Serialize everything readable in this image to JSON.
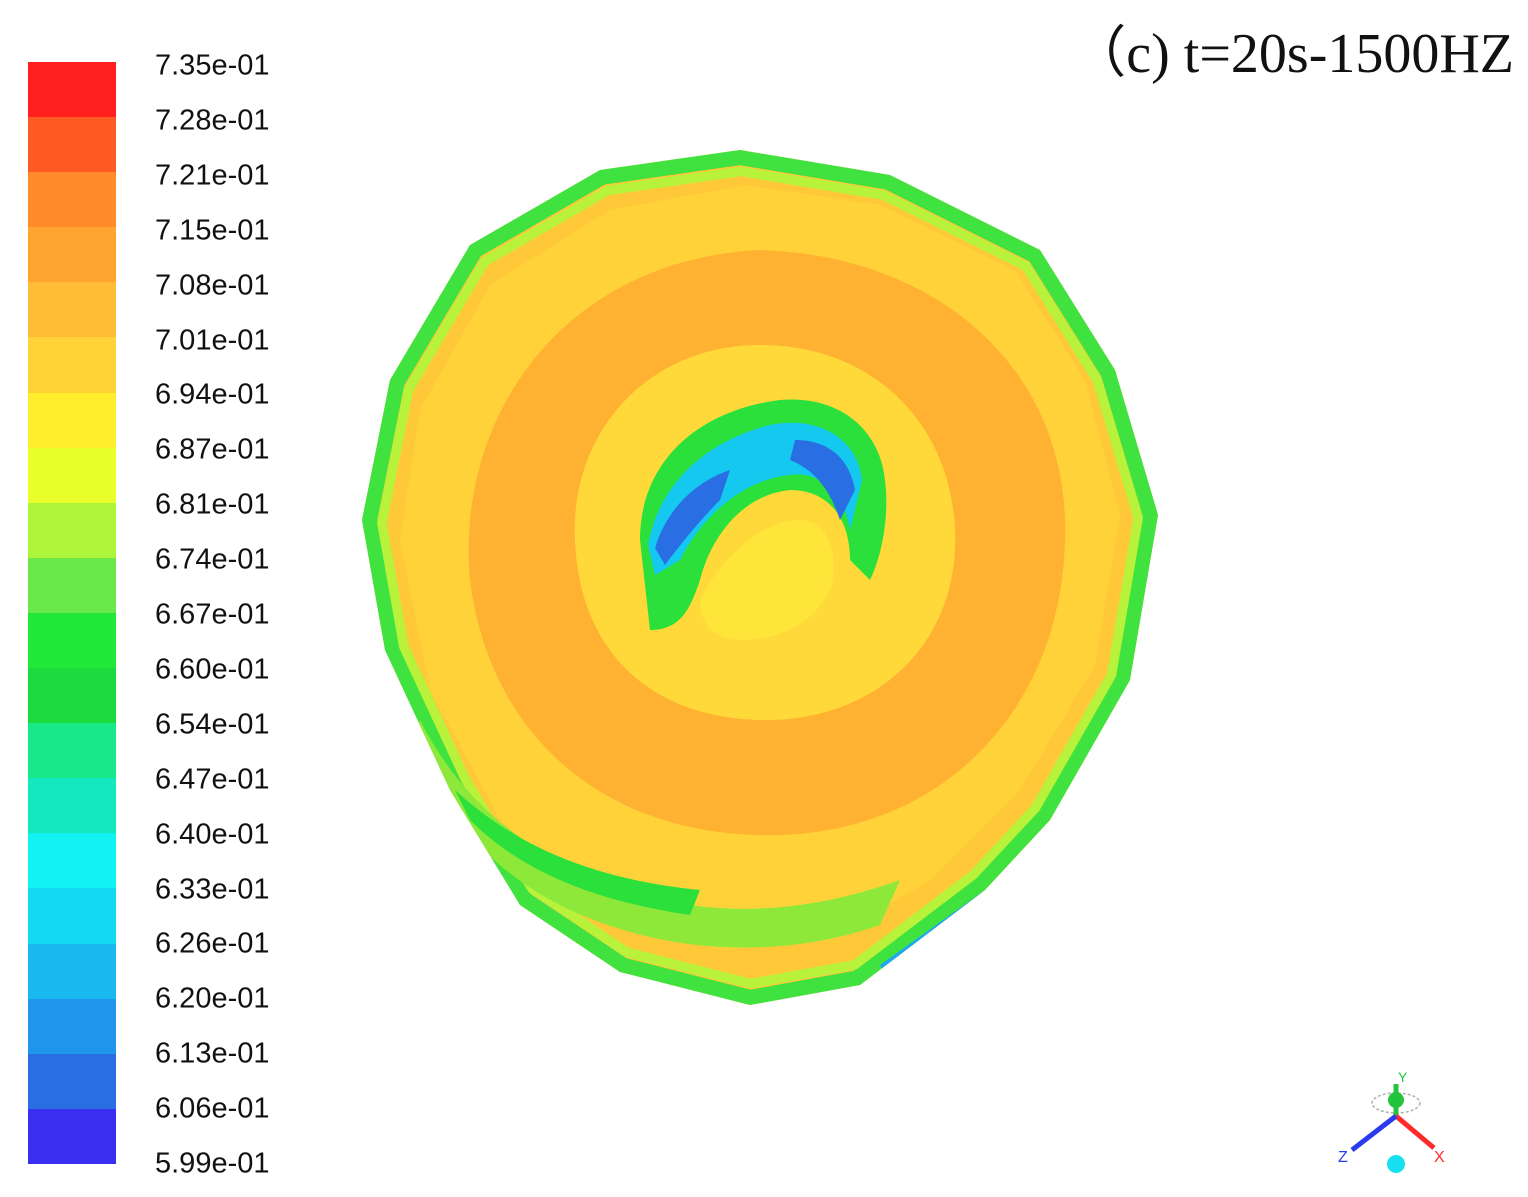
{
  "title": "（c) t=20s-1500HZ",
  "colorbar": {
    "labels": [
      "7.35e-01",
      "7.28e-01",
      "7.21e-01",
      "7.15e-01",
      "7.08e-01",
      "7.01e-01",
      "6.94e-01",
      "6.87e-01",
      "6.81e-01",
      "6.74e-01",
      "6.67e-01",
      "6.60e-01",
      "6.54e-01",
      "6.47e-01",
      "6.40e-01",
      "6.33e-01",
      "6.26e-01",
      "6.20e-01",
      "6.13e-01",
      "6.06e-01",
      "5.99e-01"
    ],
    "colors": [
      "#ff1f1f",
      "#ff5a22",
      "#ff8a2a",
      "#ffa42e",
      "#ffbd35",
      "#ffd338",
      "#ffee2d",
      "#e9ff2a",
      "#aef53a",
      "#6ae84a",
      "#22e83a",
      "#1ddb3f",
      "#19e889",
      "#14e8bf",
      "#12f2f2",
      "#14d9f2",
      "#19b8f0",
      "#1f95ec",
      "#2a6ee4",
      "#3a2ef0"
    ]
  },
  "triad": {
    "axis_labels": {
      "x": "X",
      "y": "Y",
      "z": "Z"
    },
    "colors": {
      "x": "#ff2a2a",
      "y": "#22c43a",
      "z": "#2a3aee",
      "origin": "#18e0f0"
    }
  }
}
